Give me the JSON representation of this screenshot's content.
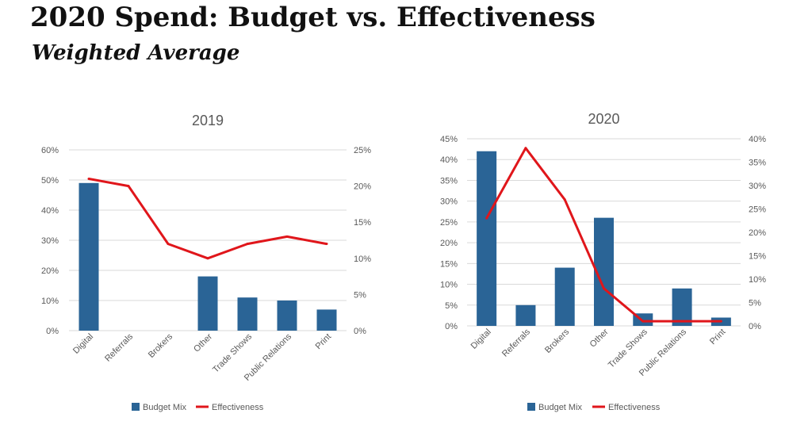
{
  "page": {
    "title": "2020 Spend:  Budget vs. Effectiveness",
    "subtitle": "Weighted Average"
  },
  "colors": {
    "bar": "#2a6496",
    "line": "#e0161b",
    "grid": "#d9d9d9",
    "axis_text": "#595959",
    "title_text": "#595959"
  },
  "chart_data": [
    {
      "type": "bar+line",
      "title": "2019",
      "categories": [
        "Digital",
        "Referrals",
        "Brokers",
        "Other",
        "Trade Shows",
        "Public Relations",
        "Print"
      ],
      "series": [
        {
          "name": "Budget Mix",
          "type": "bar",
          "axis": "left",
          "values": [
            49,
            0,
            0,
            18,
            11,
            10,
            7
          ]
        },
        {
          "name": "Effectiveness",
          "type": "line",
          "axis": "right",
          "values": [
            21,
            20,
            12,
            10,
            12,
            13,
            12
          ]
        }
      ],
      "y_left": {
        "min": 0,
        "max": 60,
        "step": 10,
        "ticks": [
          "0%",
          "10%",
          "20%",
          "30%",
          "40%",
          "50%",
          "60%"
        ]
      },
      "y_right": {
        "min": 0,
        "max": 25,
        "step": 5,
        "ticks": [
          "0%",
          "5%",
          "10%",
          "15%",
          "20%",
          "25%"
        ]
      },
      "grid": true,
      "legend_position": "bottom"
    },
    {
      "type": "bar+line",
      "title": "2020",
      "categories": [
        "Digital",
        "Referrals",
        "Brokers",
        "Other",
        "Trade Shows",
        "Public Relations",
        "Print"
      ],
      "series": [
        {
          "name": "Budget Mix",
          "type": "bar",
          "axis": "left",
          "values": [
            42,
            5,
            14,
            26,
            3,
            9,
            2
          ]
        },
        {
          "name": "Effectiveness",
          "type": "line",
          "axis": "right",
          "values": [
            23,
            38,
            27,
            8,
            1,
            1,
            1
          ]
        }
      ],
      "y_left": {
        "min": 0,
        "max": 45,
        "step": 5,
        "ticks": [
          "0%",
          "5%",
          "10%",
          "15%",
          "20%",
          "25%",
          "30%",
          "35%",
          "40%",
          "45%"
        ]
      },
      "y_right": {
        "min": 0,
        "max": 40,
        "step": 5,
        "ticks": [
          "0%",
          "5%",
          "10%",
          "15%",
          "20%",
          "25%",
          "30%",
          "35%",
          "40%"
        ]
      },
      "grid": true,
      "legend_position": "bottom"
    }
  ]
}
